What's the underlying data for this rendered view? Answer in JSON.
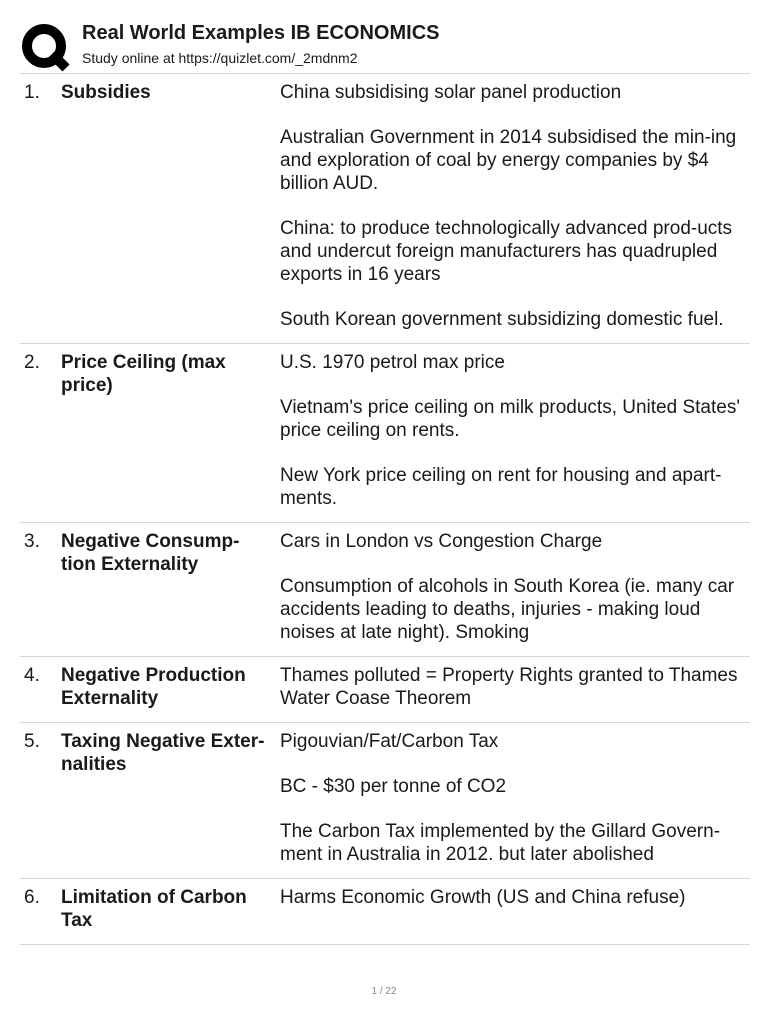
{
  "header": {
    "title": "Real World Examples IB ECONOMICS",
    "subtitle": "Study online at https://quizlet.com/_2mdnm2"
  },
  "cards": [
    {
      "number": "1.",
      "term": "Subsidies",
      "definition": [
        "China subsidising solar panel production",
        "Australian Government in 2014 subsidised the min-ing and exploration of coal by energy companies by $4 billion AUD.",
        "China: to produce technologically advanced prod-ucts and undercut foreign manufacturers has quadrupled exports in 16 years",
        "South Korean government subsidizing domestic fuel."
      ]
    },
    {
      "number": "2.",
      "term": "Price Ceiling (max price)",
      "definition": [
        "U.S. 1970 petrol max price",
        "Vietnam's price ceiling on milk products, United States' price ceiling on rents.",
        "New York price ceiling on rent for housing and apart-ments."
      ]
    },
    {
      "number": "3.",
      "term": "Negative Consump-tion Externality",
      "definition": [
        "Cars in London vs Congestion Charge",
        "Consumption of alcohols in South Korea (ie. many car accidents leading to deaths, injuries - making loud noises at late night). Smoking"
      ]
    },
    {
      "number": "4.",
      "term": "Negative Production Externality",
      "definition": [
        "Thames polluted = Property Rights granted to Thames Water Coase Theorem"
      ]
    },
    {
      "number": "5.",
      "term": "Taxing Negative Exter-nalities",
      "definition": [
        "Pigouvian/Fat/Carbon Tax",
        "BC - $30 per tonne of CO2",
        "The Carbon Tax implemented by the Gillard Govern-ment in Australia in 2012. but later abolished"
      ]
    },
    {
      "number": "6.",
      "term": "Limitation of Carbon Tax",
      "definition": [
        "Harms Economic Growth (US and China refuse)"
      ]
    }
  ],
  "footer": {
    "page": "1 / 22"
  }
}
